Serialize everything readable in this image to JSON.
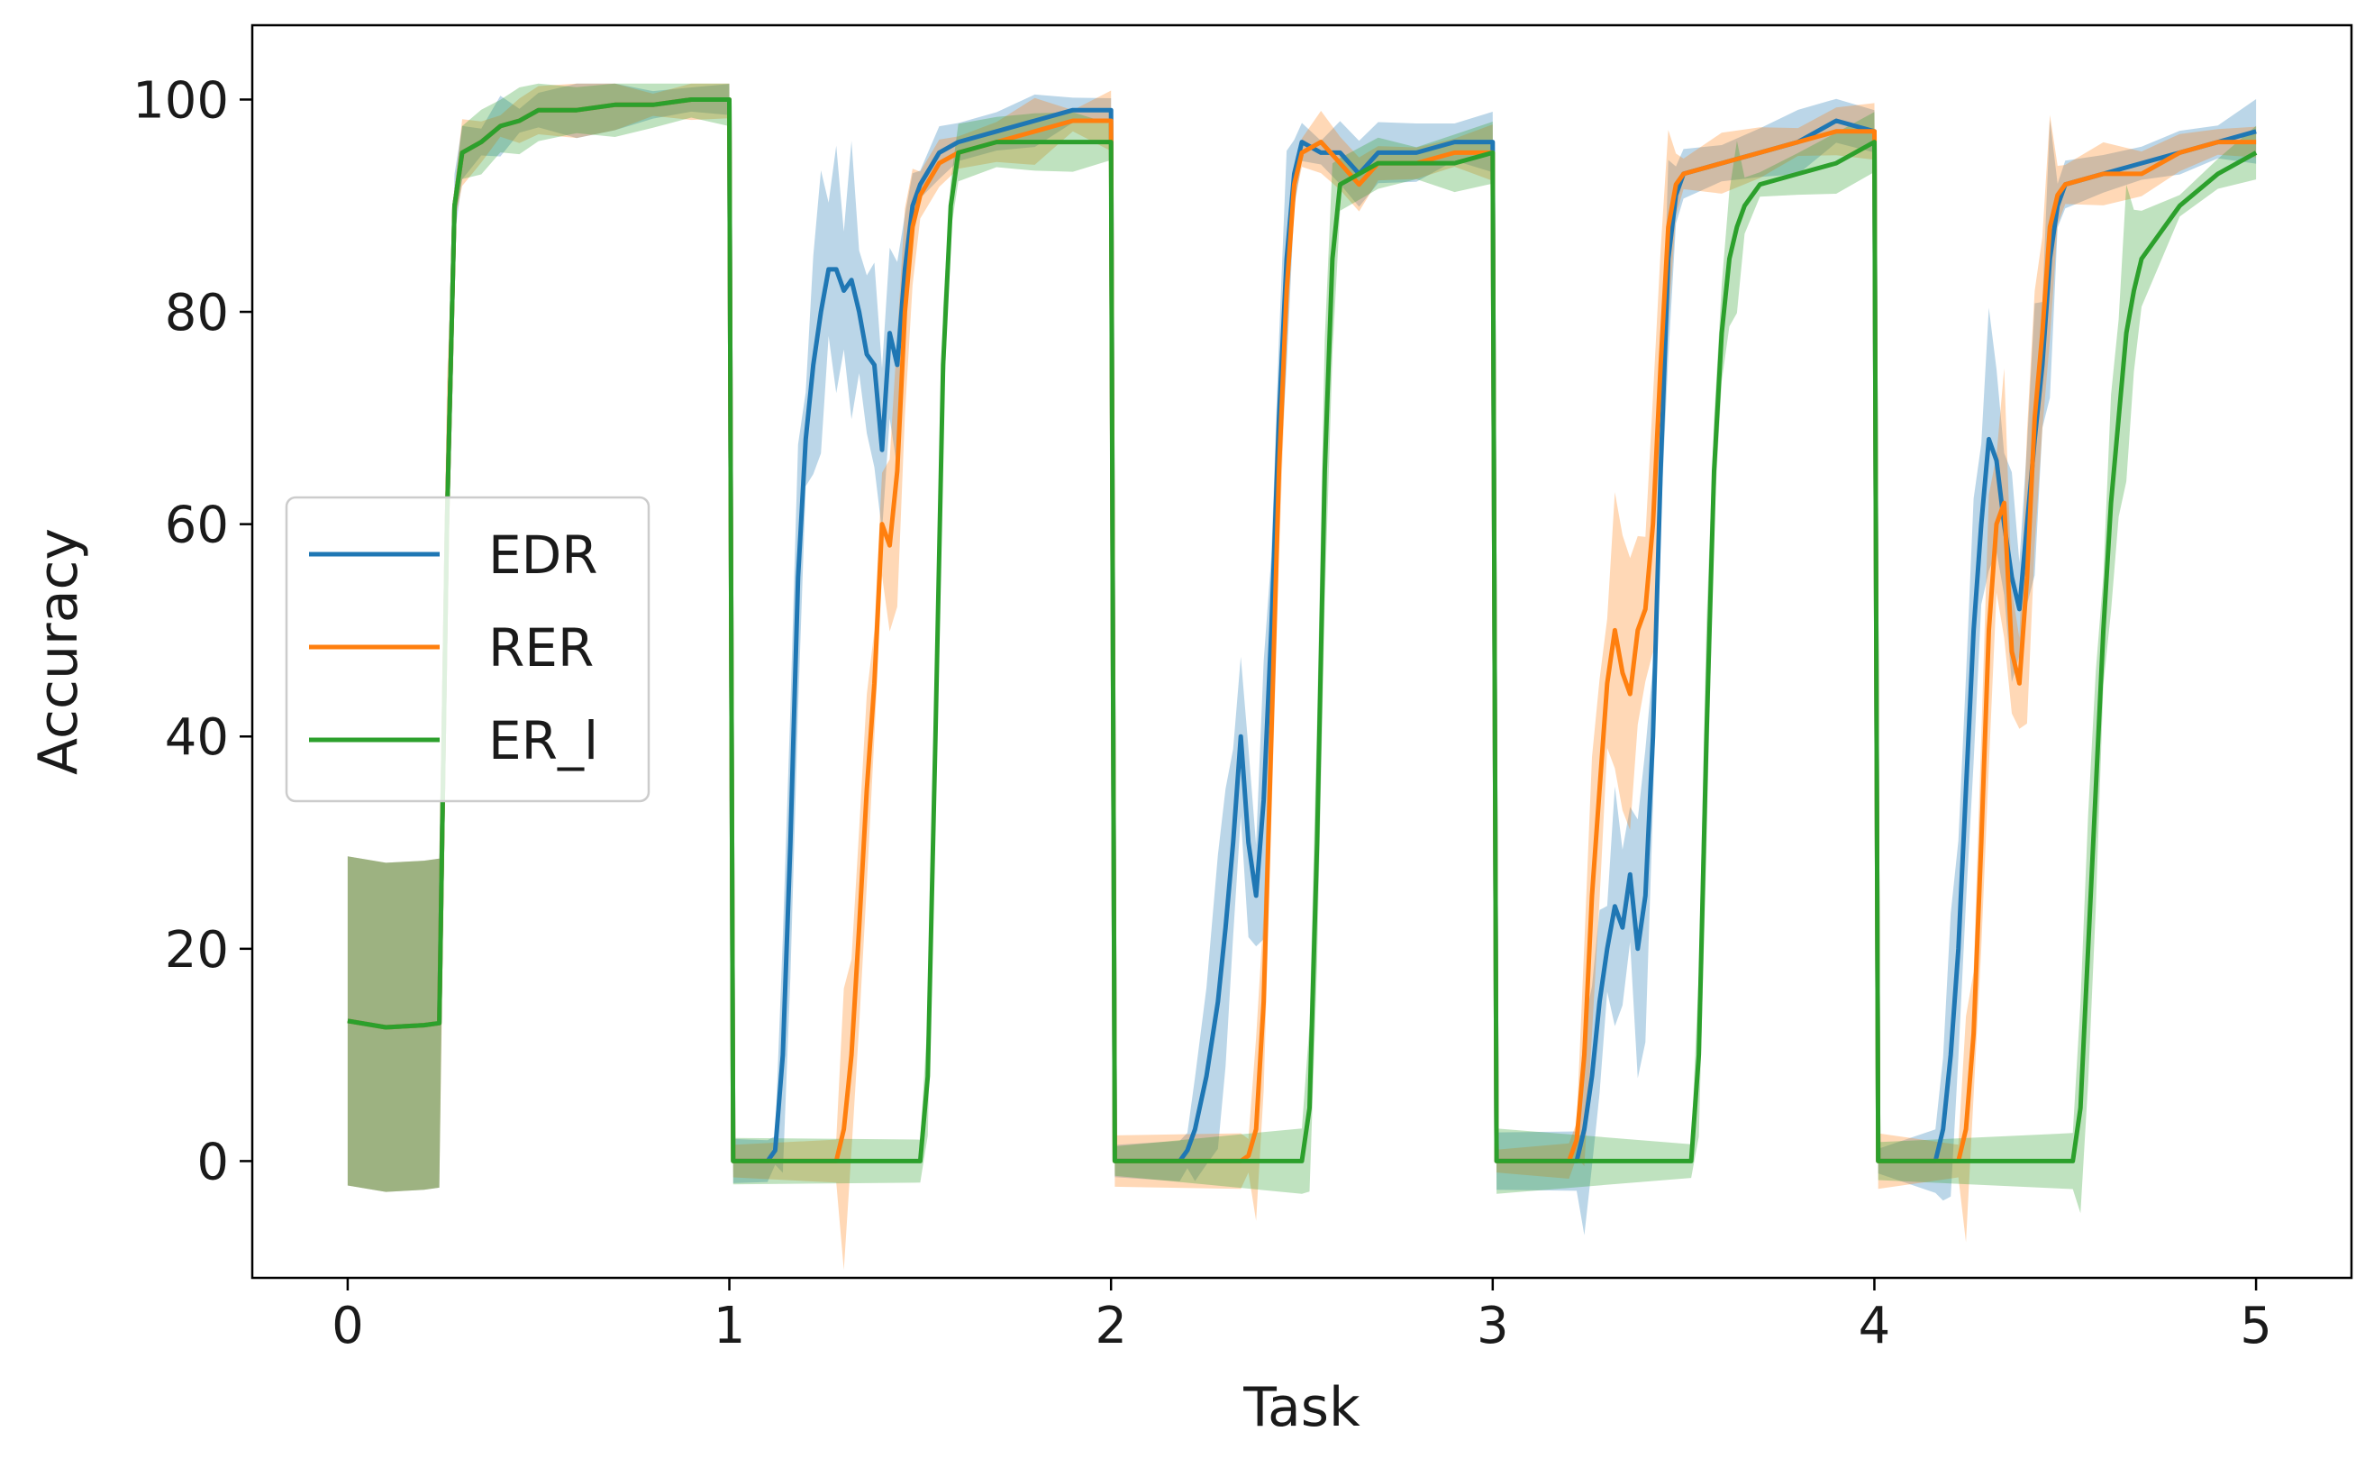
{
  "chart_data": {
    "type": "line",
    "title": "",
    "xlabel": "Task",
    "ylabel": "Accuracy",
    "xlim": [
      -0.25,
      5.25
    ],
    "ylim": [
      -11,
      107
    ],
    "xticks": [
      0,
      1,
      2,
      3,
      4,
      5
    ],
    "yticks": [
      0,
      20,
      40,
      60,
      80,
      100
    ],
    "grid": false,
    "legend_position": "center-left",
    "band_opacity": 0.3,
    "series": [
      {
        "name": "EDR",
        "color": "#1f77b4",
        "points": [
          [
            0,
            13.2
          ],
          [
            0.1,
            12.6
          ],
          [
            0.2,
            12.8
          ],
          [
            0.24,
            13
          ],
          [
            0.26,
            60
          ],
          [
            0.28,
            90
          ],
          [
            0.3,
            95
          ],
          [
            0.35,
            96
          ],
          [
            0.4,
            97.5
          ],
          [
            0.45,
            98
          ],
          [
            0.5,
            99
          ],
          [
            0.6,
            99
          ],
          [
            0.7,
            99.5
          ],
          [
            0.8,
            99.5
          ],
          [
            0.9,
            100
          ],
          [
            1.0,
            100
          ],
          [
            1.01,
            0
          ],
          [
            1.1,
            0
          ],
          [
            1.12,
            1
          ],
          [
            1.14,
            10
          ],
          [
            1.16,
            30
          ],
          [
            1.18,
            55
          ],
          [
            1.2,
            68
          ],
          [
            1.22,
            75
          ],
          [
            1.24,
            80
          ],
          [
            1.26,
            84
          ],
          [
            1.28,
            84
          ],
          [
            1.3,
            82
          ],
          [
            1.32,
            83
          ],
          [
            1.34,
            80
          ],
          [
            1.36,
            76
          ],
          [
            1.38,
            75
          ],
          [
            1.4,
            67
          ],
          [
            1.42,
            78
          ],
          [
            1.44,
            75
          ],
          [
            1.46,
            84
          ],
          [
            1.48,
            90
          ],
          [
            1.5,
            92
          ],
          [
            1.55,
            95
          ],
          [
            1.6,
            96
          ],
          [
            1.7,
            97
          ],
          [
            1.8,
            98
          ],
          [
            1.9,
            99
          ],
          [
            2.0,
            99
          ],
          [
            2.01,
            0
          ],
          [
            2.18,
            0
          ],
          [
            2.2,
            1
          ],
          [
            2.22,
            3
          ],
          [
            2.25,
            8
          ],
          [
            2.28,
            15
          ],
          [
            2.3,
            22
          ],
          [
            2.32,
            30
          ],
          [
            2.34,
            40
          ],
          [
            2.36,
            30
          ],
          [
            2.38,
            25
          ],
          [
            2.4,
            34
          ],
          [
            2.42,
            50
          ],
          [
            2.44,
            70
          ],
          [
            2.46,
            85
          ],
          [
            2.48,
            93
          ],
          [
            2.5,
            96
          ],
          [
            2.55,
            95
          ],
          [
            2.6,
            95
          ],
          [
            2.65,
            93
          ],
          [
            2.7,
            95
          ],
          [
            2.8,
            95
          ],
          [
            2.9,
            96
          ],
          [
            3.0,
            96
          ],
          [
            3.01,
            0
          ],
          [
            3.22,
            0
          ],
          [
            3.24,
            3
          ],
          [
            3.26,
            8
          ],
          [
            3.28,
            15
          ],
          [
            3.3,
            20
          ],
          [
            3.32,
            24
          ],
          [
            3.34,
            22
          ],
          [
            3.36,
            27
          ],
          [
            3.38,
            20
          ],
          [
            3.4,
            25
          ],
          [
            3.42,
            40
          ],
          [
            3.44,
            65
          ],
          [
            3.46,
            85
          ],
          [
            3.48,
            91
          ],
          [
            3.5,
            93
          ],
          [
            3.6,
            94
          ],
          [
            3.7,
            95
          ],
          [
            3.8,
            96
          ],
          [
            3.9,
            98
          ],
          [
            4.0,
            97
          ],
          [
            4.01,
            0
          ],
          [
            4.16,
            0
          ],
          [
            4.18,
            3
          ],
          [
            4.2,
            10
          ],
          [
            4.22,
            20
          ],
          [
            4.24,
            35
          ],
          [
            4.26,
            50
          ],
          [
            4.28,
            60
          ],
          [
            4.3,
            68
          ],
          [
            4.32,
            66
          ],
          [
            4.34,
            60
          ],
          [
            4.36,
            55
          ],
          [
            4.38,
            52
          ],
          [
            4.4,
            60
          ],
          [
            4.42,
            68
          ],
          [
            4.44,
            75
          ],
          [
            4.46,
            85
          ],
          [
            4.48,
            90
          ],
          [
            4.5,
            92
          ],
          [
            4.6,
            93
          ],
          [
            4.7,
            94
          ],
          [
            4.8,
            95
          ],
          [
            4.9,
            96
          ],
          [
            5.0,
            97
          ]
        ]
      },
      {
        "name": "RER",
        "color": "#ff7f0e",
        "points": [
          [
            0,
            13.2
          ],
          [
            0.1,
            12.6
          ],
          [
            0.2,
            12.8
          ],
          [
            0.24,
            13
          ],
          [
            0.26,
            60
          ],
          [
            0.28,
            90
          ],
          [
            0.3,
            95
          ],
          [
            0.35,
            96
          ],
          [
            0.4,
            97.5
          ],
          [
            0.45,
            98
          ],
          [
            0.5,
            99
          ],
          [
            0.6,
            99
          ],
          [
            0.7,
            99.5
          ],
          [
            0.8,
            99.5
          ],
          [
            0.9,
            100
          ],
          [
            1.0,
            100
          ],
          [
            1.01,
            0
          ],
          [
            1.28,
            0
          ],
          [
            1.3,
            3
          ],
          [
            1.32,
            10
          ],
          [
            1.34,
            22
          ],
          [
            1.36,
            35
          ],
          [
            1.38,
            45
          ],
          [
            1.4,
            60
          ],
          [
            1.42,
            58
          ],
          [
            1.44,
            65
          ],
          [
            1.46,
            80
          ],
          [
            1.48,
            88
          ],
          [
            1.5,
            91
          ],
          [
            1.55,
            94
          ],
          [
            1.6,
            95
          ],
          [
            1.7,
            96
          ],
          [
            1.8,
            97
          ],
          [
            1.9,
            98
          ],
          [
            2.0,
            98
          ],
          [
            2.01,
            0
          ],
          [
            2.34,
            0
          ],
          [
            2.36,
            0.5
          ],
          [
            2.38,
            3
          ],
          [
            2.4,
            15
          ],
          [
            2.42,
            40
          ],
          [
            2.44,
            65
          ],
          [
            2.46,
            82
          ],
          [
            2.48,
            92
          ],
          [
            2.5,
            95
          ],
          [
            2.55,
            96
          ],
          [
            2.6,
            94
          ],
          [
            2.65,
            92
          ],
          [
            2.7,
            94
          ],
          [
            2.8,
            94
          ],
          [
            2.9,
            95
          ],
          [
            3.0,
            95
          ],
          [
            3.01,
            0
          ],
          [
            3.2,
            0
          ],
          [
            3.22,
            2
          ],
          [
            3.24,
            10
          ],
          [
            3.26,
            25
          ],
          [
            3.28,
            35
          ],
          [
            3.3,
            45
          ],
          [
            3.32,
            50
          ],
          [
            3.34,
            46
          ],
          [
            3.36,
            44
          ],
          [
            3.38,
            50
          ],
          [
            3.4,
            52
          ],
          [
            3.42,
            60
          ],
          [
            3.44,
            75
          ],
          [
            3.46,
            88
          ],
          [
            3.48,
            92
          ],
          [
            3.5,
            93
          ],
          [
            3.6,
            94
          ],
          [
            3.7,
            95
          ],
          [
            3.8,
            96
          ],
          [
            3.9,
            97
          ],
          [
            4.0,
            97
          ],
          [
            4.01,
            0
          ],
          [
            4.22,
            0
          ],
          [
            4.24,
            3
          ],
          [
            4.26,
            12
          ],
          [
            4.28,
            30
          ],
          [
            4.3,
            50
          ],
          [
            4.32,
            60
          ],
          [
            4.34,
            62
          ],
          [
            4.36,
            48
          ],
          [
            4.38,
            45
          ],
          [
            4.4,
            55
          ],
          [
            4.42,
            70
          ],
          [
            4.44,
            78
          ],
          [
            4.46,
            88
          ],
          [
            4.48,
            91
          ],
          [
            4.5,
            92
          ],
          [
            4.6,
            93
          ],
          [
            4.7,
            93
          ],
          [
            4.8,
            95
          ],
          [
            4.9,
            96
          ],
          [
            5.0,
            96
          ]
        ]
      },
      {
        "name": "ER_l",
        "color": "#2ca02c",
        "points": [
          [
            0,
            13.2
          ],
          [
            0.1,
            12.6
          ],
          [
            0.2,
            12.8
          ],
          [
            0.24,
            13
          ],
          [
            0.26,
            60
          ],
          [
            0.28,
            90
          ],
          [
            0.3,
            95
          ],
          [
            0.35,
            96
          ],
          [
            0.4,
            97.5
          ],
          [
            0.45,
            98
          ],
          [
            0.5,
            99
          ],
          [
            0.6,
            99
          ],
          [
            0.7,
            99.5
          ],
          [
            0.8,
            99.5
          ],
          [
            0.9,
            100
          ],
          [
            1.0,
            100
          ],
          [
            1.01,
            0
          ],
          [
            1.5,
            0
          ],
          [
            1.52,
            8
          ],
          [
            1.54,
            40
          ],
          [
            1.56,
            75
          ],
          [
            1.58,
            90
          ],
          [
            1.6,
            95
          ],
          [
            1.7,
            96
          ],
          [
            1.8,
            96
          ],
          [
            1.9,
            96
          ],
          [
            2.0,
            96
          ],
          [
            2.01,
            0
          ],
          [
            2.5,
            0
          ],
          [
            2.52,
            5
          ],
          [
            2.54,
            30
          ],
          [
            2.56,
            65
          ],
          [
            2.58,
            85
          ],
          [
            2.6,
            92
          ],
          [
            2.7,
            94
          ],
          [
            2.8,
            94
          ],
          [
            2.9,
            94
          ],
          [
            3.0,
            95
          ],
          [
            3.01,
            0
          ],
          [
            3.52,
            0
          ],
          [
            3.54,
            10
          ],
          [
            3.56,
            40
          ],
          [
            3.58,
            65
          ],
          [
            3.6,
            78
          ],
          [
            3.62,
            85
          ],
          [
            3.64,
            88
          ],
          [
            3.66,
            90
          ],
          [
            3.7,
            92
          ],
          [
            3.8,
            93
          ],
          [
            3.9,
            94
          ],
          [
            4.0,
            96
          ],
          [
            4.01,
            0
          ],
          [
            4.52,
            0
          ],
          [
            4.54,
            5
          ],
          [
            4.56,
            20
          ],
          [
            4.58,
            35
          ],
          [
            4.6,
            50
          ],
          [
            4.62,
            62
          ],
          [
            4.64,
            70
          ],
          [
            4.66,
            78
          ],
          [
            4.68,
            82
          ],
          [
            4.7,
            85
          ],
          [
            4.8,
            90
          ],
          [
            4.9,
            93
          ],
          [
            5.0,
            95
          ]
        ]
      }
    ]
  }
}
